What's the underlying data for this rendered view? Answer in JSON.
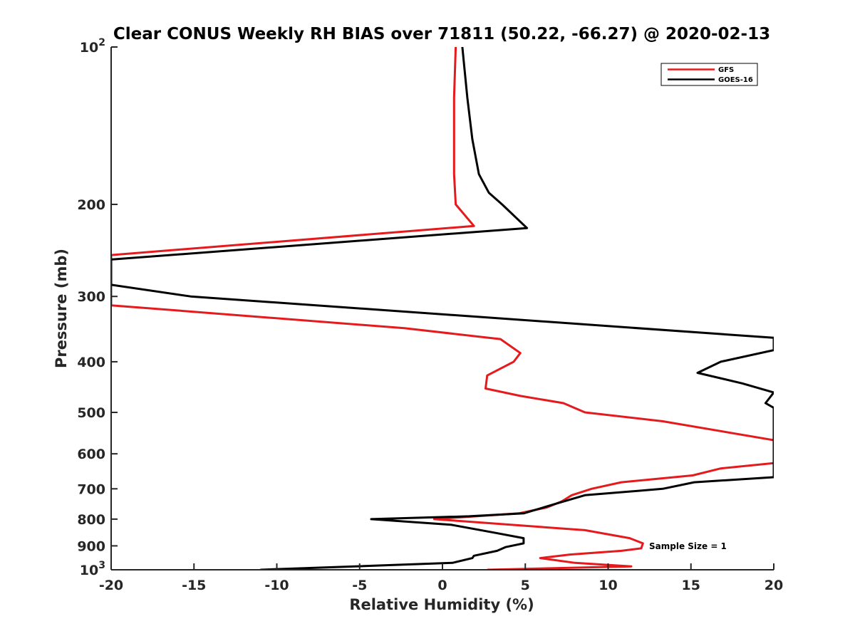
{
  "chart_data": {
    "type": "line",
    "title": "Clear CONUS Weekly RH BIAS over 71811 (50.22, -66.27) @ 2020-02-13",
    "xlabel": "Relative Humidity (%)",
    "ylabel": "Pressure (mb)",
    "xlim": [
      -20,
      20
    ],
    "ylim": [
      100,
      1000
    ],
    "y_scale": "log",
    "y_reversed": true,
    "x_ticks": [
      -20,
      -15,
      -10,
      -5,
      0,
      5,
      10,
      15,
      20
    ],
    "x_tick_labels": [
      "-20",
      "-15",
      "-10",
      "-5",
      "0",
      "5",
      "10",
      "15",
      "20"
    ],
    "y_ticks": [
      {
        "value": 100,
        "base": "10",
        "exp": "2"
      },
      {
        "value": 200,
        "label": "200"
      },
      {
        "value": 300,
        "label": "300"
      },
      {
        "value": 400,
        "label": "400"
      },
      {
        "value": 500,
        "label": "500"
      },
      {
        "value": 600,
        "label": "600"
      },
      {
        "value": 700,
        "label": "700"
      },
      {
        "value": 800,
        "label": "800"
      },
      {
        "value": 900,
        "label": "900"
      },
      {
        "value": 1000,
        "base": "10",
        "exp": "3"
      }
    ],
    "grid": false,
    "legend_position": "top-right",
    "annotation": "Sample Size = 1",
    "series": [
      {
        "name": "GFS",
        "color": "#e41a1c",
        "x": [
          0.8,
          0.7,
          0.7,
          0.7,
          0.8,
          1.9,
          -20,
          -20,
          -2.3,
          3.5,
          4.7,
          4.3,
          2.7,
          2.6,
          4.7,
          7.3,
          8.6,
          13.3,
          20,
          20,
          16.8,
          15.1,
          10.8,
          9.0,
          7.8,
          7.2,
          6.3,
          4.6,
          -0.5,
          8.6,
          11.3,
          12.1,
          12.0,
          10.8,
          7.7,
          5.9,
          8.0,
          11.4,
          2.7
        ],
        "y": [
          100,
          125,
          150,
          175,
          200,
          220,
          250,
          312,
          345,
          362,
          385,
          400,
          425,
          450,
          465,
          480,
          500,
          520,
          565,
          625,
          640,
          660,
          680,
          700,
          720,
          740,
          760,
          780,
          800,
          840,
          870,
          890,
          910,
          920,
          935,
          950,
          970,
          985,
          1000
        ]
      },
      {
        "name": "GOES-16",
        "color": "#000000",
        "x": [
          1.2,
          1.5,
          1.8,
          2.2,
          2.8,
          3.6,
          5.1,
          -20,
          -20,
          -15.2,
          20,
          20,
          16.8,
          15.4,
          18.1,
          20,
          19.5,
          20,
          20,
          15.2,
          13.3,
          8.6,
          7.0,
          4.9,
          1.6,
          -4.3,
          0.5,
          3.2,
          4.9,
          4.9,
          3.8,
          3.3,
          1.9,
          1.8,
          0.6,
          -11.0
        ],
        "y": [
          100,
          125,
          150,
          175,
          190,
          200,
          222,
          255,
          285,
          300,
          360,
          380,
          400,
          420,
          440,
          458,
          480,
          490,
          665,
          680,
          700,
          720,
          745,
          780,
          790,
          800,
          820,
          850,
          870,
          890,
          905,
          920,
          940,
          950,
          970,
          1000
        ]
      }
    ]
  }
}
